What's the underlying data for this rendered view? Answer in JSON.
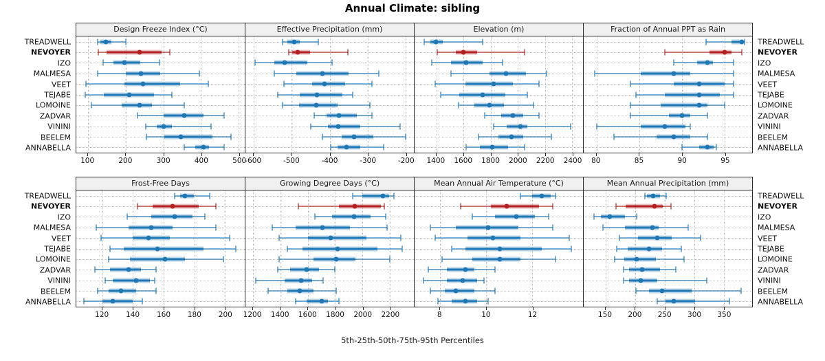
{
  "figure": {
    "title": "Annual Climate: sibling",
    "footer": "5th-25th-50th-75th-95th Percentiles"
  },
  "stations": [
    "TREADWELL",
    "NEVOYER",
    "IZO",
    "MALMESA",
    "VEET",
    "TEJABE",
    "LOMOINE",
    "ZADVAR",
    "VININI",
    "BEELEM",
    "ANNABELLA"
  ],
  "highlight_station": "NEVOYER",
  "colors": {
    "series": "#1f77b4",
    "highlight": "#b22222",
    "grid": "#c7c7c7",
    "header_bg": "#f0f0f0",
    "border": "#2b2b2b"
  },
  "percentile_labels": [
    "5th",
    "25th",
    "50th",
    "75th",
    "95th"
  ],
  "chart_data": [
    {
      "type": "dot-interval",
      "title": "Design Freeze Index (°C)",
      "band": "top",
      "xlim": [
        69,
        516
      ],
      "ticks": [
        100,
        200,
        300,
        400,
        500
      ],
      "rows": [
        {
          "station": "TREADWELL",
          "p": [
            125,
            133,
            148,
            162,
            200
          ]
        },
        {
          "station": "NEVOYER",
          "p": [
            127,
            150,
            237,
            295,
            318
          ]
        },
        {
          "station": "IZO",
          "p": [
            140,
            168,
            197,
            238,
            290
          ]
        },
        {
          "station": "MALMESA",
          "p": [
            126,
            200,
            240,
            292,
            395
          ]
        },
        {
          "station": "VEET",
          "p": [
            95,
            196,
            246,
            345,
            420
          ]
        },
        {
          "station": "TEJABE",
          "p": [
            92,
            142,
            210,
            276,
            322
          ]
        },
        {
          "station": "LOMOINE",
          "p": [
            110,
            190,
            236,
            270,
            356
          ]
        },
        {
          "station": "ZADVAR",
          "p": [
            232,
            300,
            356,
            406,
            462
          ]
        },
        {
          "station": "VININI",
          "p": [
            253,
            282,
            301,
            322,
            426
          ]
        },
        {
          "station": "BEELEM",
          "p": [
            256,
            302,
            346,
            430,
            480
          ]
        },
        {
          "station": "ANNABELLA",
          "p": [
            356,
            385,
            406,
            422,
            462
          ]
        }
      ]
    },
    {
      "type": "dot-interval",
      "title": "Effective Precipitation (mm)",
      "band": "top",
      "xlim": [
        -622,
        -178
      ],
      "ticks": [
        -600,
        -500,
        -400,
        -300,
        -200
      ],
      "rows": [
        {
          "station": "TREADWELL",
          "p": [
            -525,
            -512,
            -494,
            -478,
            -430
          ]
        },
        {
          "station": "NEVOYER",
          "p": [
            -508,
            -498,
            -484,
            -452,
            -352
          ]
        },
        {
          "station": "IZO",
          "p": [
            -597,
            -546,
            -519,
            -458,
            -394
          ]
        },
        {
          "station": "MALMESA",
          "p": [
            -546,
            -487,
            -419,
            -350,
            -270
          ]
        },
        {
          "station": "VEET",
          "p": [
            -521,
            -447,
            -414,
            -359,
            -289
          ]
        },
        {
          "station": "TEJABE",
          "p": [
            -536,
            -479,
            -434,
            -366,
            -339
          ]
        },
        {
          "station": "LOMOINE",
          "p": [
            -524,
            -481,
            -435,
            -379,
            -294
          ]
        },
        {
          "station": "ZADVAR",
          "p": [
            -441,
            -409,
            -376,
            -329,
            -289
          ]
        },
        {
          "station": "VININI",
          "p": [
            -449,
            -404,
            -377,
            -319,
            -214
          ]
        },
        {
          "station": "BEELEM",
          "p": [
            -419,
            -369,
            -336,
            -285,
            -199
          ]
        },
        {
          "station": "ANNABELLA",
          "p": [
            -398,
            -379,
            -356,
            -319,
            -257
          ]
        }
      ]
    },
    {
      "type": "dot-interval",
      "title": "Elevation (m)",
      "band": "top",
      "xlim": [
        1240,
        2480
      ],
      "ticks": [
        1400,
        1600,
        1800,
        2000,
        2200,
        2400
      ],
      "rows": [
        {
          "station": "TREADWELL",
          "p": [
            1310,
            1358,
            1397,
            1448,
            1740
          ]
        },
        {
          "station": "NEVOYER",
          "p": [
            1405,
            1546,
            1601,
            1702,
            2048
          ]
        },
        {
          "station": "IZO",
          "p": [
            1365,
            1510,
            1622,
            1742,
            1888
          ]
        },
        {
          "station": "MALMESA",
          "p": [
            1508,
            1790,
            1914,
            2060,
            2210
          ]
        },
        {
          "station": "VEET",
          "p": [
            1392,
            1612,
            1824,
            1964,
            2158
          ]
        },
        {
          "station": "TEJABE",
          "p": [
            1430,
            1570,
            1740,
            1908,
            2068
          ]
        },
        {
          "station": "LOMOINE",
          "p": [
            1565,
            1680,
            1790,
            1900,
            2118
          ]
        },
        {
          "station": "ZADVAR",
          "p": [
            1754,
            1880,
            1964,
            2040,
            2158
          ]
        },
        {
          "station": "VININI",
          "p": [
            1820,
            1920,
            2018,
            2070,
            2388
          ]
        },
        {
          "station": "BEELEM",
          "p": [
            1710,
            1858,
            1954,
            2040,
            2248
          ]
        },
        {
          "station": "ANNABELLA",
          "p": [
            1620,
            1720,
            1814,
            1930,
            2050
          ]
        }
      ]
    },
    {
      "type": "dot-interval",
      "title": "Fraction of Annual PPT as Rain",
      "band": "top",
      "xlim": [
        78.5,
        98.2
      ],
      "ticks": [
        80,
        85,
        90,
        95
      ],
      "rows": [
        {
          "station": "TREADWELL",
          "p": [
            92.8,
            95.8,
            97,
            97.1,
            97.3
          ]
        },
        {
          "station": "NEVOYER",
          "p": [
            88,
            93.2,
            95,
            95.8,
            97
          ]
        },
        {
          "station": "IZO",
          "p": [
            89,
            91.8,
            93,
            93.6,
            96
          ]
        },
        {
          "station": "MALMESA",
          "p": [
            79.8,
            85.2,
            89,
            91,
            96
          ]
        },
        {
          "station": "VEET",
          "p": [
            84,
            89,
            92,
            95,
            96
          ]
        },
        {
          "station": "TEJABE",
          "p": [
            84.6,
            88,
            92,
            94.4,
            96
          ]
        },
        {
          "station": "LOMOINE",
          "p": [
            84,
            87.5,
            92,
            93,
            95
          ]
        },
        {
          "station": "ZADVAR",
          "p": [
            84,
            88.5,
            90,
            91,
            93
          ]
        },
        {
          "station": "VININI",
          "p": [
            80,
            85.2,
            88,
            90.4,
            91
          ]
        },
        {
          "station": "BEELEM",
          "p": [
            82,
            87,
            89,
            91,
            93
          ]
        },
        {
          "station": "ANNABELLA",
          "p": [
            90,
            92,
            93,
            93.7,
            94
          ]
        }
      ]
    },
    {
      "type": "dot-interval",
      "title": "Frost-Free Days",
      "band": "bottom",
      "xlim": [
        103,
        213
      ],
      "ticks": [
        120,
        140,
        160,
        180,
        200
      ],
      "rows": [
        {
          "station": "TREADWELL",
          "p": [
            167,
            171,
            174,
            180,
            190
          ]
        },
        {
          "station": "NEVOYER",
          "p": [
            143,
            153,
            166,
            183,
            194
          ]
        },
        {
          "station": "IZO",
          "p": [
            136,
            152,
            167,
            179,
            187
          ]
        },
        {
          "station": "MALMESA",
          "p": [
            116,
            137,
            152,
            166,
            194
          ]
        },
        {
          "station": "VEET",
          "p": [
            119,
            140,
            150,
            164,
            203
          ]
        },
        {
          "station": "TEJABE",
          "p": [
            125,
            134,
            156,
            186,
            207
          ]
        },
        {
          "station": "LOMOINE",
          "p": [
            124,
            138,
            161,
            174,
            199
          ]
        },
        {
          "station": "ZADVAR",
          "p": [
            115,
            125,
            137,
            145,
            155
          ]
        },
        {
          "station": "VININI",
          "p": [
            122,
            127,
            142,
            151,
            154
          ]
        },
        {
          "station": "BEELEM",
          "p": [
            117,
            124,
            132,
            142,
            155
          ]
        },
        {
          "station": "ANNABELLA",
          "p": [
            108,
            120,
            127,
            140,
            146
          ]
        }
      ]
    },
    {
      "type": "dot-interval",
      "title": "Growing Degree Days (°C)",
      "band": "bottom",
      "xlim": [
        1145,
        2375
      ],
      "ticks": [
        1200,
        1400,
        1600,
        1800,
        2000,
        2200
      ],
      "rows": [
        {
          "station": "TREADWELL",
          "p": [
            1930,
            2000,
            2150,
            2195,
            2230
          ]
        },
        {
          "station": "NEVOYER",
          "p": [
            1530,
            1830,
            1945,
            2135,
            2160
          ]
        },
        {
          "station": "IZO",
          "p": [
            1650,
            1780,
            1940,
            2060,
            2170
          ]
        },
        {
          "station": "MALMESA",
          "p": [
            1340,
            1510,
            1705,
            1910,
            2180
          ]
        },
        {
          "station": "VEET",
          "p": [
            1390,
            1600,
            1770,
            2030,
            2280
          ]
        },
        {
          "station": "TEJABE",
          "p": [
            1450,
            1560,
            1820,
            2110,
            2290
          ]
        },
        {
          "station": "LOMOINE",
          "p": [
            1390,
            1640,
            1810,
            1950,
            2200
          ]
        },
        {
          "station": "ZADVAR",
          "p": [
            1380,
            1470,
            1590,
            1680,
            1800
          ]
        },
        {
          "station": "VININI",
          "p": [
            1220,
            1430,
            1550,
            1630,
            1710
          ]
        },
        {
          "station": "BEELEM",
          "p": [
            1310,
            1450,
            1540,
            1640,
            1810
          ]
        },
        {
          "station": "ANNABELLA",
          "p": [
            1510,
            1590,
            1700,
            1750,
            1830
          ]
        }
      ]
    },
    {
      "type": "dot-interval",
      "title": "Mean Annual Air Temperature (°C)",
      "band": "bottom",
      "xlim": [
        6.9,
        14.2
      ],
      "ticks": [
        8,
        10,
        12
      ],
      "rows": [
        {
          "station": "TREADWELL",
          "p": [
            11.5,
            12,
            12.4,
            12.8,
            13
          ]
        },
        {
          "station": "NEVOYER",
          "p": [
            8.9,
            10.2,
            10.9,
            12.3,
            12.9
          ]
        },
        {
          "station": "IZO",
          "p": [
            9.4,
            10.4,
            11.3,
            12.1,
            12.7
          ]
        },
        {
          "station": "MALMESA",
          "p": [
            7.6,
            8.7,
            10.1,
            11.4,
            12.9
          ]
        },
        {
          "station": "VEET",
          "p": [
            7.8,
            9.2,
            10.3,
            11.5,
            13.6
          ]
        },
        {
          "station": "TEJABE",
          "p": [
            8.5,
            9.1,
            10.6,
            12.4,
            13.7
          ]
        },
        {
          "station": "LOMOINE",
          "p": [
            8.1,
            9.4,
            10.6,
            11.5,
            13
          ]
        },
        {
          "station": "ZADVAR",
          "p": [
            7.5,
            8.3,
            9.1,
            9.5,
            10.4
          ]
        },
        {
          "station": "VININI",
          "p": [
            7.3,
            8.3,
            9,
            9.6,
            9.9
          ]
        },
        {
          "station": "BEELEM",
          "p": [
            7.6,
            8.2,
            8.7,
            9.5,
            10.4
          ]
        },
        {
          "station": "ANNABELLA",
          "p": [
            7.9,
            8.5,
            9.1,
            9.6,
            10.1
          ]
        }
      ]
    },
    {
      "type": "dot-interval",
      "title": "Mean Annual Precipitation (mm)",
      "band": "bottom",
      "xlim": [
        113,
        398
      ],
      "ticks": [
        150,
        200,
        250,
        300,
        350
      ],
      "rows": [
        {
          "station": "TREADWELL",
          "p": [
            216,
            220,
            230,
            242,
            253
          ]
        },
        {
          "station": "NEVOYER",
          "p": [
            168,
            184,
            233,
            247,
            261
          ]
        },
        {
          "station": "IZO",
          "p": [
            130,
            142,
            157,
            183,
            202
          ]
        },
        {
          "station": "MALMESA",
          "p": [
            145,
            183,
            229,
            240,
            290
          ]
        },
        {
          "station": "VEET",
          "p": [
            173,
            205,
            237,
            262,
            311
          ]
        },
        {
          "station": "TEJABE",
          "p": [
            169,
            187,
            223,
            246,
            278
          ]
        },
        {
          "station": "LOMOINE",
          "p": [
            165,
            182,
            203,
            235,
            283
          ]
        },
        {
          "station": "ZADVAR",
          "p": [
            181,
            190,
            212,
            242,
            269
          ]
        },
        {
          "station": "VININI",
          "p": [
            180,
            190,
            209,
            238,
            321
          ]
        },
        {
          "station": "BEELEM",
          "p": [
            201,
            223,
            246,
            296,
            379
          ]
        },
        {
          "station": "ANNABELLA",
          "p": [
            238,
            252,
            265,
            302,
            360
          ]
        }
      ]
    }
  ]
}
